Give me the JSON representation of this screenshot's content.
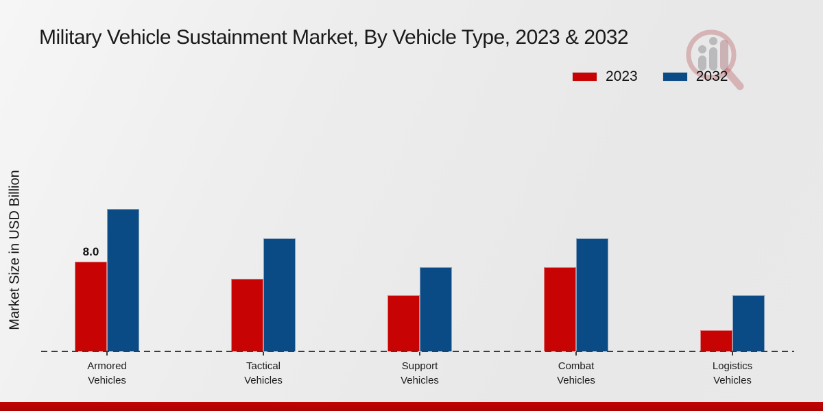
{
  "title": "Military Vehicle Sustainment Market, By Vehicle Type, 2023 & 2032",
  "y_axis_label": "Market Size in USD Billion",
  "legend": {
    "position": "top-right",
    "items": [
      {
        "label": "2023",
        "color": "#c80303"
      },
      {
        "label": "2032",
        "color": "#0b4b85"
      }
    ]
  },
  "watermark_icon": "magnifier-bar-chart-logo",
  "footer_bar_color": "#b00202",
  "chart_data": {
    "type": "bar",
    "title": "Military Vehicle Sustainment Market, By Vehicle Type, 2023 & 2032",
    "xlabel": "",
    "ylabel": "Market Size in USD Billion",
    "categories": [
      "Armored\nVehicles",
      "Tactical\nVehicles",
      "Support\nVehicles",
      "Combat\nVehicles",
      "Logistics\nVehicles"
    ],
    "series": [
      {
        "name": "2023",
        "color": "#c80303",
        "values": [
          8.0,
          6.5,
          5.0,
          7.5,
          1.9
        ]
      },
      {
        "name": "2032",
        "color": "#0b4b85",
        "values": [
          12.7,
          10.1,
          7.5,
          10.1,
          5.0
        ]
      }
    ],
    "data_labels": [
      {
        "series_index": 0,
        "category_index": 0,
        "text": "8.0"
      }
    ],
    "ylim": [
      0,
      14
    ],
    "grid": false,
    "baseline_style": "dashed",
    "legend_position": "top-right"
  }
}
